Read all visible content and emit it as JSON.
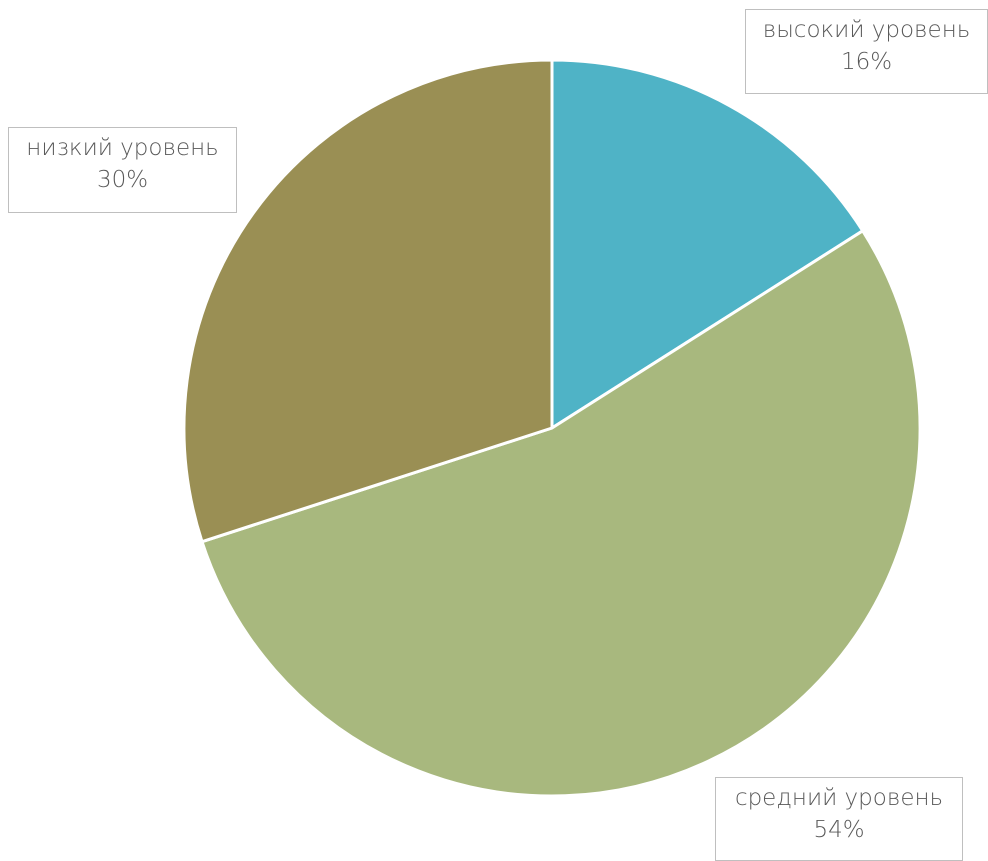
{
  "chart_data": {
    "type": "pie",
    "title": "",
    "start_angle_deg": 0,
    "direction": "clockwise",
    "slices": [
      {
        "label": "высокий уровень",
        "value": 16,
        "percent_label": "16%",
        "color": "#4fb3c6"
      },
      {
        "label": "средний уровень",
        "value": 54,
        "percent_label": "54%",
        "color": "#a8b87e"
      },
      {
        "label": "низкий уровень",
        "value": 30,
        "percent_label": "30%",
        "color": "#9a8f54"
      }
    ],
    "slice_border_color": "#ffffff",
    "legend": "none",
    "data_labels": "callout-boxes"
  }
}
